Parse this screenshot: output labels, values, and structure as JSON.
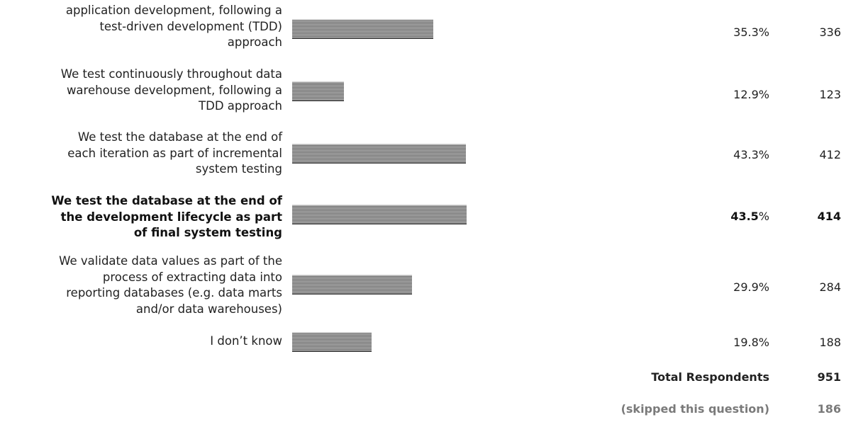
{
  "chart_data": {
    "type": "bar",
    "orientation": "horizontal",
    "categories": [
      "application development, following a test-driven development (TDD) approach",
      "We test continuously throughout data warehouse development, following a TDD approach",
      "We test the database at the end of each iteration as part of incremental system testing",
      "We test the database at the end of the development lifecycle as part of final system testing",
      "We validate data values as part of the process of extracting data into reporting databases (e.g. data marts and/or data warehouses)",
      "I don’t know"
    ],
    "values": [
      35.3,
      12.9,
      43.3,
      43.5,
      29.9,
      19.8
    ],
    "counts": [
      336,
      123,
      412,
      414,
      284,
      188
    ],
    "percent_labels": [
      "35.3%",
      "12.9%",
      "43.3%",
      "43.5%",
      "29.9%",
      "19.8%"
    ],
    "highlighted_index": 3,
    "xlim": [
      0,
      100
    ],
    "grid": false,
    "legend": "none"
  },
  "rows": [
    {
      "lines": [
        "application development, following a",
        "test-driven development (TDD)",
        "approach"
      ],
      "pct_num": "35.3",
      "pct_sign": "%",
      "count": "336",
      "bold": false
    },
    {
      "lines": [
        "We test continuously throughout data",
        "warehouse development, following a",
        "TDD approach"
      ],
      "pct_num": "12.9",
      "pct_sign": "%",
      "count": "123",
      "bold": false
    },
    {
      "lines": [
        "We test the database at the end of",
        "each iteration as part of incremental",
        "system testing"
      ],
      "pct_num": "43.3",
      "pct_sign": "%",
      "count": "412",
      "bold": false
    },
    {
      "lines": [
        "We test the database at the end of",
        "the development lifecycle as part",
        "of final system testing"
      ],
      "pct_num": "43.5",
      "pct_sign": "%",
      "count": "414",
      "bold": true
    },
    {
      "lines": [
        "We validate data values as part of the",
        "process of extracting data into",
        "reporting databases (e.g. data marts",
        "and/or data warehouses)"
      ],
      "pct_num": "29.9",
      "pct_sign": "%",
      "count": "284",
      "bold": false
    },
    {
      "lines": [
        "I don’t know"
      ],
      "pct_num": "19.8",
      "pct_sign": "%",
      "count": "188",
      "bold": false
    }
  ],
  "summary": {
    "total_label": "Total Respondents",
    "total_value": "951",
    "skipped_label": "(skipped this question)",
    "skipped_value": "186"
  },
  "colors": {
    "bar_light": "#b4b4b4",
    "bar_dark": "#6e6e6e",
    "text": "#222222",
    "muted": "#7a7a7a"
  }
}
